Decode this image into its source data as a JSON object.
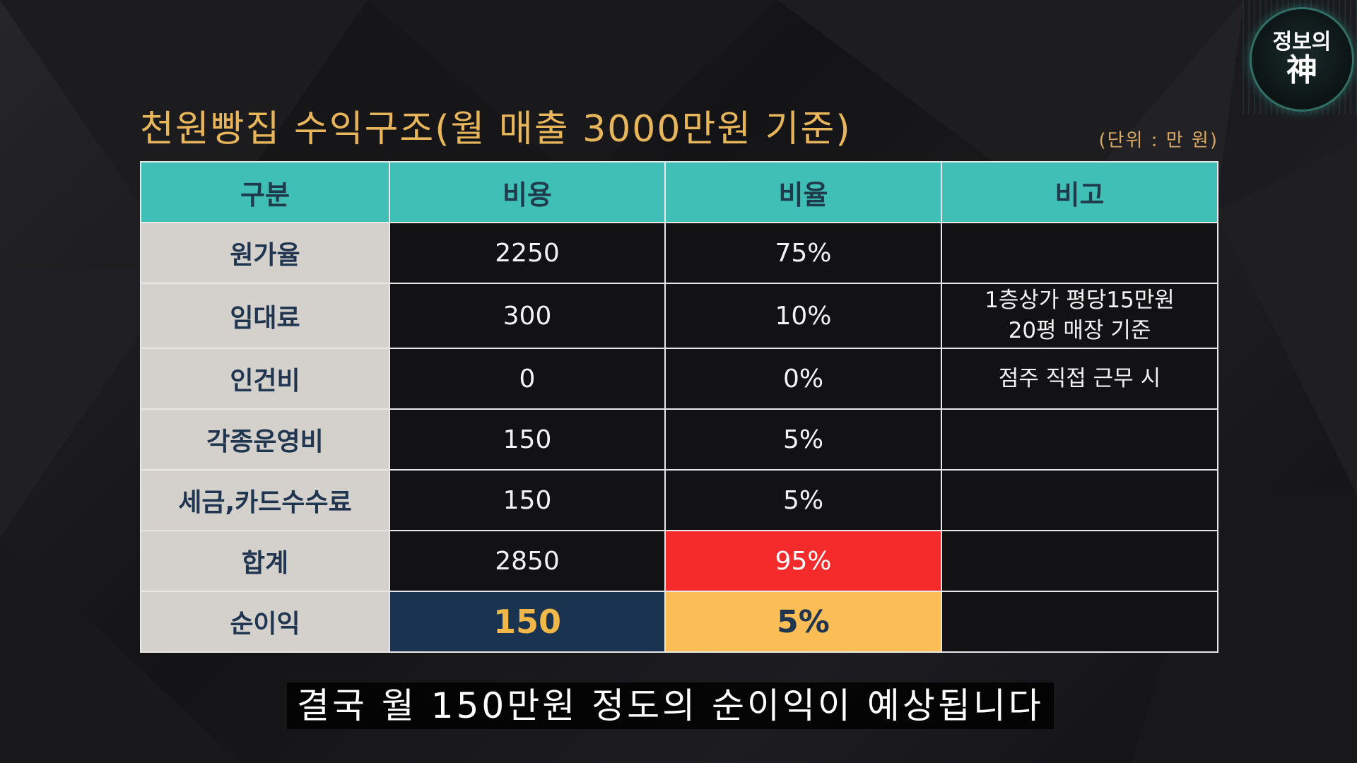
{
  "title": "천원빵집 수익구조(월 매출 3000만원 기준)",
  "unit": "(단위 : 만 원)",
  "logo": {
    "top": "정보의",
    "bottom": "神"
  },
  "table": {
    "headers": [
      "구분",
      "비용",
      "비율",
      "비고"
    ],
    "rows": [
      {
        "category": "원가율",
        "cost": "2250",
        "ratio": "75%",
        "note_lines": []
      },
      {
        "category": "임대료",
        "cost": "300",
        "ratio": "10%",
        "note_lines": [
          "1층상가 평당15만원",
          "20평 매장 기준"
        ]
      },
      {
        "category": "인건비",
        "cost": "0",
        "ratio": "0%",
        "note_lines": [
          "점주 직접 근무 시"
        ]
      },
      {
        "category": "각종운영비",
        "cost": "150",
        "ratio": "5%",
        "note_lines": []
      },
      {
        "category": "세금,카드수수료",
        "cost": "150",
        "ratio": "5%",
        "note_lines": []
      },
      {
        "category": "합계",
        "cost": "2850",
        "ratio": "95%",
        "note_lines": []
      },
      {
        "category": "순이익",
        "cost": "150",
        "ratio": "5%",
        "note_lines": []
      }
    ]
  },
  "subtitle": "결국 월 150만원 정도의 순이익이 예상됩니다",
  "colors": {
    "header_teal": "#3fbfb5",
    "total_ratio_red": "#f52b2b",
    "profit_cost_navy": "#1a3350",
    "profit_ratio_orange": "#fbbd56",
    "title_gold": "#e7b55a"
  }
}
